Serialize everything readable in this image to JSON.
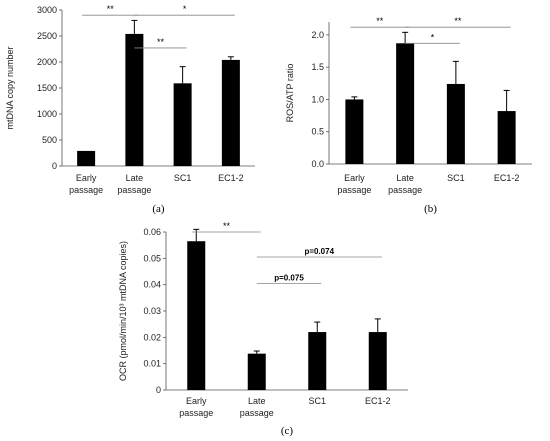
{
  "chart_data": [
    {
      "type": "bar",
      "panel": "(a)",
      "categories": [
        [
          "Early",
          "passage"
        ],
        [
          "Late",
          "passage"
        ],
        [
          "SC1"
        ],
        [
          "EC1-2"
        ]
      ],
      "values": [
        290,
        2540,
        1590,
        2040
      ],
      "errors": [
        0,
        260,
        320,
        60
      ],
      "ylabel": "mtDNA copy number",
      "ylim": [
        0,
        3000
      ],
      "yticks": [
        0,
        500,
        1000,
        1500,
        2000,
        2500,
        3000
      ],
      "ytick_labels": [
        "0",
        "500",
        "1000",
        "1500",
        "2000",
        "2500",
        "3000"
      ],
      "bar_color": "#000000",
      "annotations": [
        {
          "from": 0,
          "to": 1,
          "label": "**",
          "y": 2900
        },
        {
          "from": 1,
          "to": 2,
          "label": "**",
          "y": 2270
        },
        {
          "from": 1,
          "to": 3,
          "label": "*",
          "y": 2900
        }
      ]
    },
    {
      "type": "bar",
      "panel": "(b)",
      "categories": [
        [
          "Early",
          "passage"
        ],
        [
          "Late",
          "passage"
        ],
        [
          "SC1"
        ],
        [
          "EC1-2"
        ]
      ],
      "values": [
        1.0,
        1.87,
        1.24,
        0.82
      ],
      "errors": [
        0.04,
        0.17,
        0.35,
        0.32
      ],
      "ylabel": "ROS/ATP ratio",
      "ylim": [
        0,
        2.2
      ],
      "yticks": [
        0,
        0.5,
        1.0,
        1.5,
        2.0
      ],
      "ytick_labels": [
        "0.0",
        "0.5",
        "1.0",
        "1.5",
        "2.0"
      ],
      "bar_color": "#000000",
      "annotations": [
        {
          "from": 0,
          "to": 1,
          "label": "**",
          "y": 2.12
        },
        {
          "from": 1,
          "to": 2,
          "label": "*",
          "y": 1.87
        },
        {
          "from": 1,
          "to": 3,
          "label": "**",
          "y": 2.12
        }
      ]
    },
    {
      "type": "bar",
      "panel": "(c)",
      "categories": [
        [
          "Early",
          "passage"
        ],
        [
          "Late",
          "passage"
        ],
        [
          "SC1"
        ],
        [
          "EC1-2"
        ]
      ],
      "values": [
        0.0565,
        0.0138,
        0.022,
        0.022
      ],
      "errors": [
        0.0045,
        0.001,
        0.0038,
        0.005
      ],
      "ylabel": "OCR (pmol/min/10³ mtDNA copies)",
      "ylim": [
        0,
        0.06
      ],
      "yticks": [
        0,
        0.01,
        0.02,
        0.03,
        0.04,
        0.05,
        0.06
      ],
      "ytick_labels": [
        "0",
        "0.01",
        "0.02",
        "0.03",
        "0.04",
        "0.05",
        "0.06"
      ],
      "bar_color": "#000000",
      "annotations": [
        {
          "from": 0,
          "to": 1,
          "label": "**",
          "y": 0.06,
          "bold": false
        },
        {
          "from": 1,
          "to": 2,
          "label": "p=0.075",
          "y": 0.0405,
          "bold": true
        },
        {
          "from": 1,
          "to": 3,
          "label": "p=0.074",
          "y": 0.0505,
          "bold": true
        }
      ]
    }
  ]
}
